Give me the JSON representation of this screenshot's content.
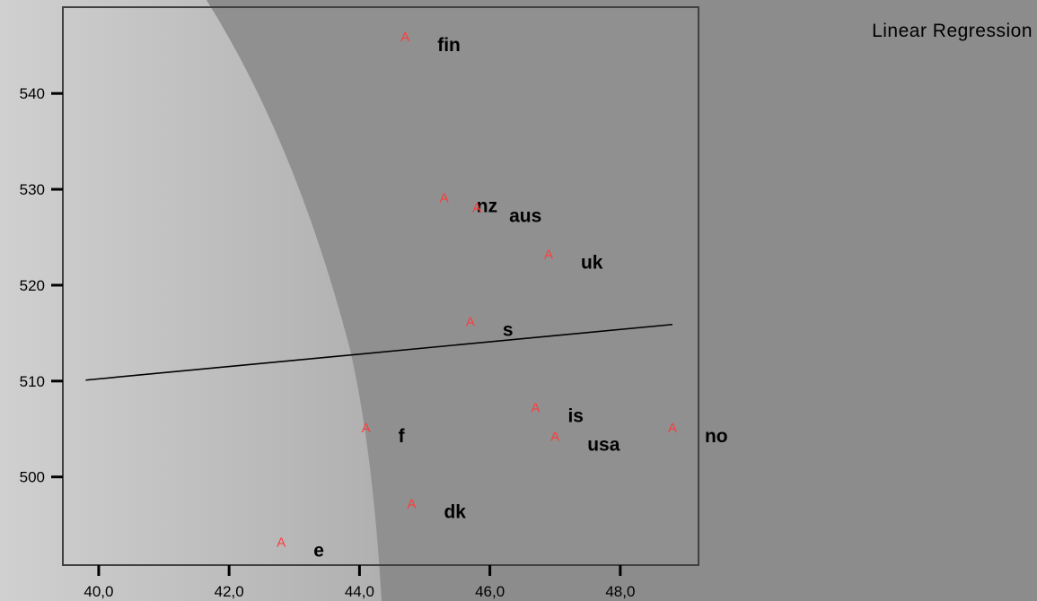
{
  "chart_data": {
    "type": "scatter",
    "title": "",
    "xlabel": "",
    "ylabel": "",
    "xlim": [
      39.45,
      49.2
    ],
    "ylim": [
      490.8,
      549.0
    ],
    "x_ticks": [
      40,
      42,
      44,
      46,
      48
    ],
    "x_tick_labels": [
      "40,0",
      "42,0",
      "44,0",
      "46,0",
      "48,0"
    ],
    "y_ticks": [
      500,
      510,
      520,
      530,
      540
    ],
    "y_tick_labels": [
      "500",
      "510",
      "520",
      "530",
      "540"
    ],
    "marker_symbol": "A",
    "points": [
      {
        "label": "fin",
        "x": 44.7,
        "y": 546.0
      },
      {
        "label": "nz",
        "x": 45.3,
        "y": 529.2
      },
      {
        "label": "aus",
        "x": 45.8,
        "y": 528.2
      },
      {
        "label": "uk",
        "x": 46.9,
        "y": 523.3
      },
      {
        "label": "s",
        "x": 45.7,
        "y": 516.3
      },
      {
        "label": "is",
        "x": 46.7,
        "y": 507.3
      },
      {
        "label": "f",
        "x": 44.1,
        "y": 505.2
      },
      {
        "label": "usa",
        "x": 47.0,
        "y": 504.3
      },
      {
        "label": "no",
        "x": 48.8,
        "y": 505.2
      },
      {
        "label": "dk",
        "x": 44.8,
        "y": 497.3
      },
      {
        "label": "e",
        "x": 42.8,
        "y": 493.3
      }
    ],
    "regression": {
      "x_start": 39.8,
      "x_end": 48.8,
      "y_start": 510.1,
      "y_end": 515.9
    },
    "legend": {
      "text": "Linear Regression",
      "position": "top-right"
    },
    "grid": false,
    "colors": {
      "marker": "#ff3b3b",
      "background": "#8c8c8c",
      "plot_shade": "#8f8f8f",
      "light_band": "#c4c4c4",
      "line": "#000000"
    }
  }
}
